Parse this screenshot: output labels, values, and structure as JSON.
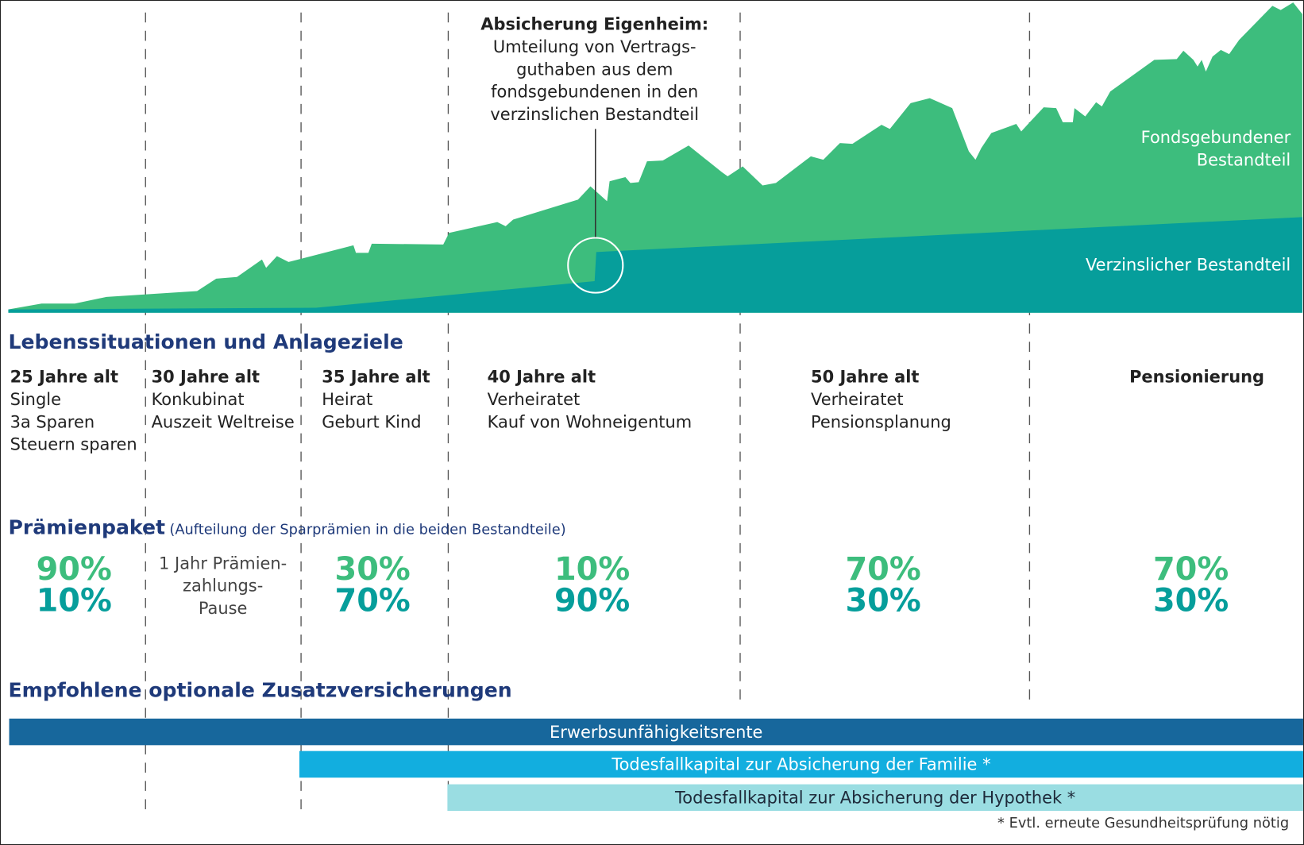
{
  "chart": {
    "callout": {
      "title": "Absicherung Eigenheim:",
      "lines": [
        "Umteilung von Vertrags-",
        "guthaben aus dem",
        "fondsgebundenen in den",
        "verzinslichen Bestandteil"
      ]
    },
    "labels": {
      "fonds_line1": "Fondsgebundener",
      "fonds_line2": "Bestandteil",
      "verz": "Verzinslicher Bestandteil"
    },
    "colors": {
      "fonds": "#3dbd7d",
      "verz": "#069e9b"
    }
  },
  "life": {
    "heading": "Lebenssituationen und Anlageziele",
    "stages": [
      {
        "title": "25 Jahre alt",
        "lines": [
          "Single",
          "3a Sparen",
          "Steuern sparen"
        ]
      },
      {
        "title": "30 Jahre alt",
        "lines": [
          "Konkubinat",
          "Auszeit Weltreise"
        ]
      },
      {
        "title": "35 Jahre alt",
        "lines": [
          "Heirat",
          "Geburt Kind"
        ]
      },
      {
        "title": "40 Jahre alt",
        "lines": [
          "Verheiratet",
          "Kauf von Wohneigentum"
        ]
      },
      {
        "title": "50 Jahre alt",
        "lines": [
          "Verheiratet",
          "Pensionsplanung"
        ]
      },
      {
        "title": "Pensionierung",
        "lines": []
      }
    ]
  },
  "premium": {
    "heading": "Prämienpaket",
    "subheading": "(Aufteilung der Sparprämien in die beiden Bestandteile)",
    "stages": [
      {
        "fonds": "90%",
        "verz": "10%"
      },
      {
        "pause": [
          "1 Jahr Prämien-",
          "zahlungs-",
          "Pause"
        ]
      },
      {
        "fonds": "30%",
        "verz": "70%"
      },
      {
        "fonds": "10%",
        "verz": "90%"
      },
      {
        "fonds": "70%",
        "verz": "30%"
      },
      {
        "fonds": "70%",
        "verz": "30%"
      }
    ]
  },
  "insurance": {
    "heading": "Empfohlene optionale Zusatzversicherungen",
    "bars": [
      {
        "label": "Erwerbsunfähigkeitsrente",
        "color": "#17679c"
      },
      {
        "label": "Todesfallkapital zur Absicherung der Familie *",
        "color": "#12aedf"
      },
      {
        "label": "Todesfallkapital zur Absicherung der Hypothek *",
        "color": "#9adde2"
      }
    ],
    "footnote": "* Evtl. erneute Gesundheitsprüfung nötig"
  }
}
